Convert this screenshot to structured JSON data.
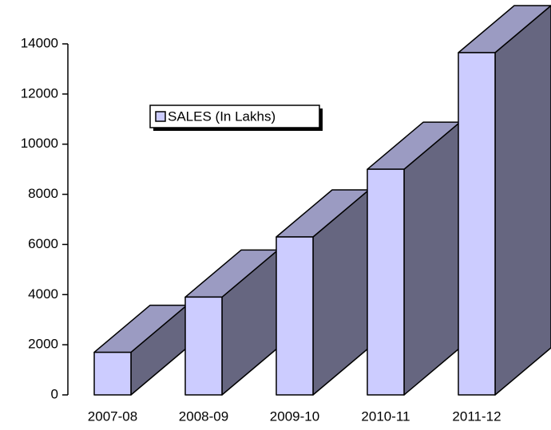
{
  "chart_data": {
    "type": "bar3d",
    "categories": [
      "2007-08",
      "2008-09",
      "2009-10",
      "2010-11",
      "2011-12"
    ],
    "series": [
      {
        "name": "SALES (In Lakhs)",
        "color": "#ccccff",
        "values": [
          1700,
          3900,
          6300,
          9000,
          13650
        ]
      }
    ],
    "ylim": [
      0,
      14000
    ],
    "yticks": [
      0,
      2000,
      4000,
      6000,
      8000,
      10000,
      12000,
      14000
    ],
    "legend": "upper left"
  }
}
